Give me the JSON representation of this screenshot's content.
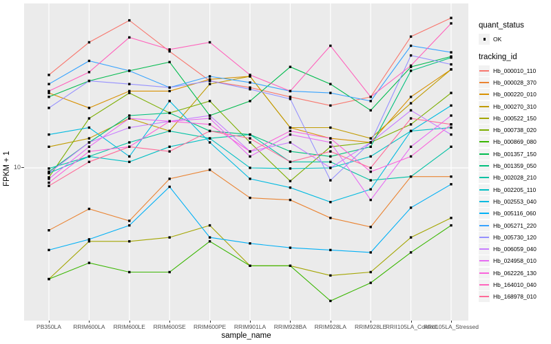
{
  "figure": {
    "background": "#ffffff",
    "panel_background": "#EBEBEB",
    "gridline_color": "#FFFFFF",
    "point_color": "#000000",
    "y_tick_label": "10"
  },
  "chart_data": {
    "type": "line",
    "title": "",
    "xlabel": "sample_name",
    "ylabel": "FPKM + 1",
    "y_scale": "log10",
    "y_ticks": [
      10
    ],
    "ylim": [
      0.9,
      130
    ],
    "grid": "single horizontal gridline at y=10, vertical gridline per category",
    "legend_position": "right",
    "legend": {
      "quant_title": "quant_status",
      "quant_items": [
        {
          "label": "OK",
          "shape": "black-point"
        }
      ],
      "series_title": "tracking_id"
    },
    "categories": [
      "PB350LA",
      "RRIM600LA",
      "RRIM600LE",
      "RRIM600SE",
      "RRIM600PE",
      "RRIM901LA",
      "RRIM928BA",
      "RRIM928LA",
      "RRIM928LE",
      "RRII105LA_Control",
      "RRII105LA_Stressed"
    ],
    "series": [
      {
        "name": "Hb_000010_110",
        "color": "#F8766D",
        "values": [
          44,
          74,
          105,
          64,
          40,
          36,
          31,
          27,
          31,
          81,
          109
        ]
      },
      {
        "name": "Hb_000028_370",
        "color": "#EA8331",
        "values": [
          3.7,
          5.2,
          4.3,
          8.4,
          9.7,
          6.2,
          6.0,
          4.5,
          3.9,
          8.7,
          8.7
        ]
      },
      {
        "name": "Hb_000220_010",
        "color": "#D89000",
        "values": [
          33,
          26,
          34,
          34,
          41,
          43,
          19,
          16,
          15,
          31,
          48
        ]
      },
      {
        "name": "Hb_000270_310",
        "color": "#C09B00",
        "values": [
          14,
          16,
          22,
          18,
          38,
          43,
          19,
          19,
          16,
          28,
          48
        ]
      },
      {
        "name": "Hb_000522_150",
        "color": "#A3A500",
        "values": [
          1.7,
          3.1,
          3.1,
          3.3,
          4.0,
          2.1,
          2.1,
          1.8,
          1.9,
          3.3,
          4.5
        ]
      },
      {
        "name": "Hb_000738_020",
        "color": "#7CAE00",
        "values": [
          8.6,
          22,
          33,
          24,
          29,
          15,
          8.1,
          14,
          15,
          20,
          33
        ]
      },
      {
        "name": "Hb_000869_080",
        "color": "#39B600",
        "values": [
          1.7,
          2.2,
          1.9,
          1.9,
          3.1,
          2.1,
          2.1,
          1.2,
          1.6,
          2.6,
          4.0
        ]
      },
      {
        "name": "Hb_001357_150",
        "color": "#00BB4E",
        "values": [
          31,
          40,
          47,
          54,
          23,
          29,
          50,
          38,
          25,
          50,
          59
        ]
      },
      {
        "name": "Hb_001359_050",
        "color": "#00BF7D",
        "values": [
          9.4,
          15,
          23,
          24,
          18,
          17,
          13,
          12,
          14,
          47,
          58
        ]
      },
      {
        "name": "Hb_002028_210",
        "color": "#00C1A3",
        "values": [
          9.9,
          12,
          15,
          18,
          16,
          17,
          11,
          11,
          8.2,
          8.7,
          14
        ]
      },
      {
        "name": "Hb_002205_110",
        "color": "#00BFC4",
        "values": [
          9.2,
          12,
          11,
          14,
          16,
          10,
          9.9,
          10,
          12,
          18,
          19
        ]
      },
      {
        "name": "Hb_002553_040",
        "color": "#00BAE0",
        "values": [
          17,
          19,
          12,
          29,
          15,
          8.4,
          7.3,
          5.8,
          7.1,
          18,
          27
        ]
      },
      {
        "name": "Hb_005116_060",
        "color": "#00B0F6",
        "values": [
          2.7,
          3.2,
          4.0,
          7.4,
          3.3,
          3.0,
          2.8,
          2.7,
          2.6,
          5.3,
          7.7
        ]
      },
      {
        "name": "Hb_005271_220",
        "color": "#35A2FF",
        "values": [
          38,
          55,
          47,
          36,
          43,
          39,
          34,
          33,
          29,
          70,
          63
        ]
      },
      {
        "name": "Hb_005730_120",
        "color": "#9590FF",
        "values": [
          26,
          40,
          38,
          36,
          40,
          35,
          30,
          8.2,
          15,
          60,
          52
        ]
      },
      {
        "name": "Hb_006059_040",
        "color": "#C77CFF",
        "values": [
          9.2,
          15,
          19,
          21,
          23,
          13,
          15,
          10,
          15,
          25,
          17
        ]
      },
      {
        "name": "Hb_024958_010",
        "color": "#E76BF3",
        "values": [
          8.4,
          14,
          22,
          21,
          22,
          12,
          17,
          15,
          6.0,
          14,
          23
        ]
      },
      {
        "name": "Hb_062226_130",
        "color": "#FA62DB",
        "values": [
          7.9,
          13,
          14,
          21,
          20,
          13,
          18,
          16,
          9.4,
          12,
          20
        ]
      },
      {
        "name": "Hb_164010_040",
        "color": "#FF62BC",
        "values": [
          34,
          46,
          80,
          66,
          74,
          44,
          34,
          70,
          31,
          51,
          100
        ]
      },
      {
        "name": "Hb_168978_010",
        "color": "#FF6A98",
        "values": [
          7.5,
          11,
          14,
          13,
          18,
          16,
          11,
          13,
          10,
          22,
          20
        ]
      }
    ]
  }
}
